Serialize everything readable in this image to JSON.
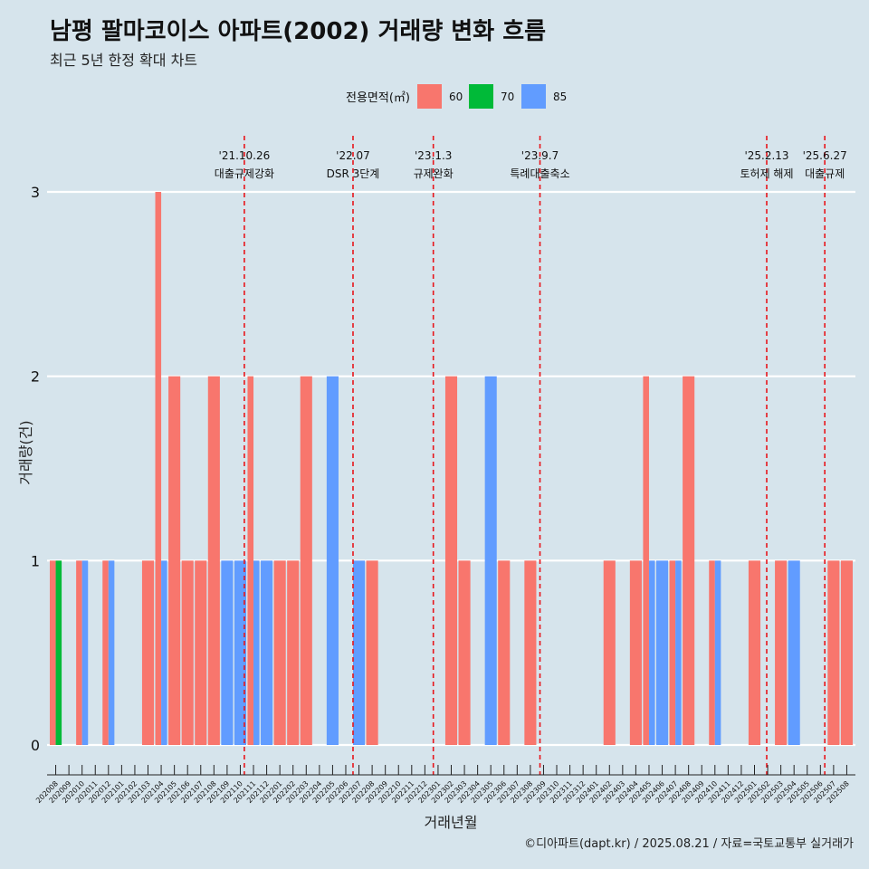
{
  "title": "남평 팔마코이스 아파트(2002) 거래량 변화 흐름",
  "subtitle": "최근 5년 한정 확대 차트",
  "caption": "©디아파트(dapt.kr) / 2025.08.21 / 자료=국토교통부 실거래가",
  "colors": {
    "60": "#f8766d",
    "70": "#00ba38",
    "85": "#619cff",
    "event_line": "#e8151b",
    "background": "#d6e4ec"
  },
  "chart_data": {
    "type": "bar",
    "xlabel": "거래년월",
    "ylabel": "거래량(건)",
    "ylim": [
      0,
      3
    ],
    "yticks": [
      0,
      1,
      2,
      3
    ],
    "grid": true,
    "legend": {
      "title": "전용면적(㎡)",
      "position": "top",
      "entries": [
        "60",
        "70",
        "85"
      ]
    },
    "categories": [
      "202008",
      "202009",
      "202010",
      "202011",
      "202012",
      "202101",
      "202102",
      "202103",
      "202104",
      "202105",
      "202106",
      "202107",
      "202108",
      "202109",
      "202110",
      "202111",
      "202112",
      "202201",
      "202202",
      "202203",
      "202204",
      "202205",
      "202206",
      "202207",
      "202208",
      "202209",
      "202210",
      "202211",
      "202212",
      "202301",
      "202302",
      "202303",
      "202304",
      "202305",
      "202306",
      "202307",
      "202308",
      "202309",
      "202310",
      "202311",
      "202312",
      "202401",
      "202402",
      "202403",
      "202404",
      "202405",
      "202406",
      "202407",
      "202408",
      "202409",
      "202410",
      "202411",
      "202412",
      "202501",
      "202502",
      "202503",
      "202504",
      "202505",
      "202506",
      "202507",
      "202508"
    ],
    "series": [
      {
        "name": "60",
        "values": [
          1,
          0,
          1,
          0,
          1,
          0,
          0,
          1,
          3,
          2,
          1,
          1,
          2,
          0,
          0,
          2,
          0,
          1,
          1,
          2,
          0,
          0,
          0,
          0,
          1,
          0,
          0,
          0,
          0,
          0,
          2,
          1,
          0,
          0,
          1,
          0,
          1,
          0,
          0,
          0,
          0,
          0,
          1,
          0,
          1,
          2,
          0,
          1,
          2,
          0,
          1,
          0,
          0,
          1,
          0,
          1,
          0,
          0,
          0,
          1,
          1
        ]
      },
      {
        "name": "70",
        "values": [
          1,
          0,
          0,
          0,
          0,
          0,
          0,
          0,
          0,
          0,
          0,
          0,
          0,
          0,
          0,
          0,
          0,
          0,
          0,
          0,
          0,
          0,
          0,
          0,
          0,
          0,
          0,
          0,
          0,
          0,
          0,
          0,
          0,
          0,
          0,
          0,
          0,
          0,
          0,
          0,
          0,
          0,
          0,
          0,
          0,
          0,
          0,
          0,
          0,
          0,
          0,
          0,
          0,
          0,
          0,
          0,
          0,
          0,
          0,
          0,
          0
        ]
      },
      {
        "name": "85",
        "values": [
          0,
          0,
          1,
          0,
          1,
          0,
          0,
          0,
          1,
          0,
          0,
          0,
          0,
          1,
          1,
          1,
          1,
          0,
          0,
          0,
          0,
          2,
          0,
          1,
          0,
          0,
          0,
          0,
          0,
          0,
          0,
          0,
          0,
          2,
          0,
          0,
          0,
          0,
          0,
          0,
          0,
          0,
          0,
          0,
          0,
          1,
          1,
          1,
          0,
          0,
          1,
          0,
          0,
          0,
          0,
          0,
          1,
          0,
          0,
          0,
          0
        ]
      }
    ],
    "events": [
      {
        "date": "2021.10.26",
        "x": "202110",
        "x_offset": 0.84,
        "label1": "'21.10.26",
        "label2": "대출규제강화"
      },
      {
        "date": "2022.07",
        "x": "202207",
        "x_offset": 0.0,
        "label1": "'22.07",
        "label2": "DSR 3단계"
      },
      {
        "date": "2023.1.3",
        "x": "202301",
        "x_offset": 0.1,
        "label1": "'23.1.3",
        "label2": "규제완화"
      },
      {
        "date": "2023.9.7",
        "x": "202309",
        "x_offset": 0.2,
        "label1": "'23.9.7",
        "label2": "특례대출축소"
      },
      {
        "date": "2025.2.13",
        "x": "202502",
        "x_offset": 0.42,
        "label1": "'25.2.13",
        "label2": "토허제 해제"
      },
      {
        "date": "2025.6.27",
        "x": "202506",
        "x_offset": 0.87,
        "label1": "'25.6.27",
        "label2": "대출규제"
      }
    ]
  }
}
